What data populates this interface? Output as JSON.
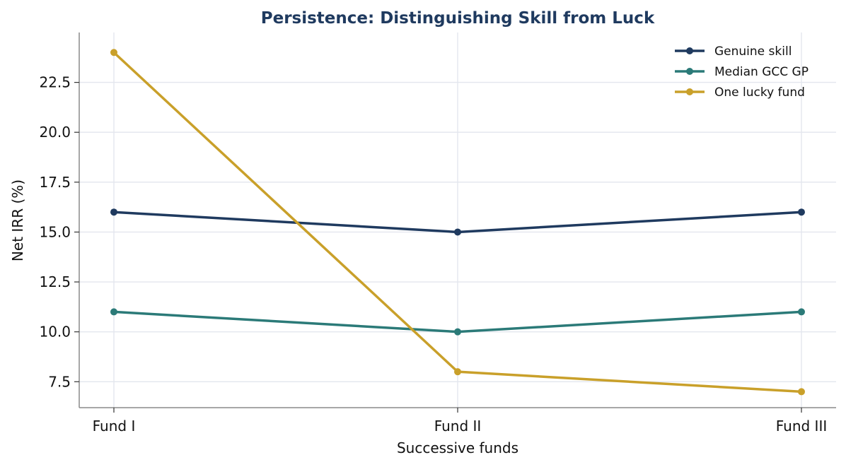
{
  "chart_data": {
    "type": "line",
    "title": "Persistence: Distinguishing Skill from Luck",
    "xlabel": "Successive funds",
    "ylabel": "Net IRR (%)",
    "categories": [
      "Fund I",
      "Fund II",
      "Fund III"
    ],
    "ylim": [
      6.2,
      25.0
    ],
    "yticks": [
      7.5,
      10.0,
      12.5,
      15.0,
      17.5,
      20.0,
      22.5
    ],
    "ytick_labels": [
      "7.5",
      "10.0",
      "12.5",
      "15.0",
      "17.5",
      "20.0",
      "22.5"
    ],
    "grid": true,
    "legend_position": "top-right",
    "series": [
      {
        "name": "Genuine skill",
        "values": [
          16,
          15,
          16
        ],
        "color": "#1f3a5f"
      },
      {
        "name": "Median GCC GP",
        "values": [
          11,
          10,
          11
        ],
        "color": "#2b7a78"
      },
      {
        "name": "One lucky fund",
        "values": [
          24,
          8,
          7
        ],
        "color": "#c9a02a"
      }
    ],
    "colors": {
      "title": "#1f3a5f",
      "grid": "#e3e6ee",
      "axis": "#8a8a8a"
    }
  }
}
